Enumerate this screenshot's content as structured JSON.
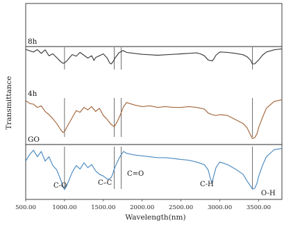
{
  "chart_data": {
    "type": "line",
    "xlabel": "Wavelength(nm)",
    "ylabel": "Transmittance",
    "xlim": [
      500,
      3800
    ],
    "xticks": [
      "500.00",
      "1000.00",
      "1500.00",
      "2000.00",
      "2500.00",
      "3000.00",
      "3500.00"
    ],
    "guide_lines": [
      1000,
      1640,
      1730,
      3420
    ],
    "annotations": [
      {
        "text": "C-O",
        "x": 1000,
        "series": "GO"
      },
      {
        "text": "C–C",
        "x": 1620,
        "series": "GO"
      },
      {
        "text": "C=O",
        "x": 1730,
        "series": "GO"
      },
      {
        "text": "C-H",
        "x": 2900,
        "series": "GO"
      },
      {
        "text": "O-H",
        "x": 3450,
        "series": "GO"
      }
    ],
    "series": [
      {
        "name": "8h",
        "color": "#3a3a3a",
        "x": [
          500,
          560,
          600,
          650,
          700,
          750,
          800,
          850,
          900,
          950,
          980,
          1000,
          1030,
          1060,
          1100,
          1150,
          1200,
          1250,
          1300,
          1350,
          1380,
          1400,
          1450,
          1500,
          1550,
          1580,
          1600,
          1620,
          1650,
          1700,
          1750,
          1800,
          1900,
          2000,
          2100,
          2200,
          2300,
          2400,
          2500,
          2600,
          2700,
          2750,
          2800,
          2850,
          2900,
          2920,
          2950,
          3000,
          3100,
          3200,
          3300,
          3350,
          3400,
          3420,
          3450,
          3500,
          3550,
          3600,
          3700,
          3800
        ],
        "y": [
          0.97,
          0.9,
          0.86,
          0.96,
          0.8,
          0.95,
          0.7,
          0.78,
          0.62,
          0.45,
          0.38,
          0.4,
          0.48,
          0.6,
          0.75,
          0.68,
          0.84,
          0.72,
          0.6,
          0.7,
          0.5,
          0.62,
          0.7,
          0.78,
          0.6,
          0.4,
          0.35,
          0.42,
          0.6,
          0.82,
          0.92,
          0.84,
          0.8,
          0.76,
          0.74,
          0.72,
          0.74,
          0.76,
          0.78,
          0.8,
          0.82,
          0.78,
          0.7,
          0.52,
          0.48,
          0.55,
          0.72,
          0.86,
          0.84,
          0.8,
          0.74,
          0.66,
          0.5,
          0.35,
          0.36,
          0.52,
          0.72,
          0.86,
          0.95,
          0.99
        ]
      },
      {
        "name": "4h",
        "color": "#a4653a",
        "x": [
          500,
          550,
          600,
          650,
          700,
          750,
          800,
          850,
          900,
          950,
          980,
          1000,
          1050,
          1100,
          1150,
          1200,
          1250,
          1300,
          1350,
          1400,
          1450,
          1500,
          1550,
          1600,
          1640,
          1680,
          1720,
          1760,
          1800,
          1900,
          2000,
          2100,
          2200,
          2300,
          2400,
          2500,
          2600,
          2700,
          2800,
          2850,
          2900,
          2950,
          3000,
          3100,
          3200,
          3300,
          3350,
          3400,
          3420,
          3450,
          3480,
          3500,
          3550,
          3600,
          3700,
          3800
        ],
        "y": [
          0.97,
          0.9,
          0.88,
          0.8,
          0.84,
          0.7,
          0.62,
          0.52,
          0.4,
          0.25,
          0.18,
          0.2,
          0.38,
          0.55,
          0.72,
          0.68,
          0.8,
          0.74,
          0.82,
          0.7,
          0.78,
          0.6,
          0.5,
          0.38,
          0.32,
          0.45,
          0.62,
          0.82,
          0.92,
          0.86,
          0.82,
          0.84,
          0.8,
          0.82,
          0.8,
          0.8,
          0.82,
          0.8,
          0.76,
          0.66,
          0.62,
          0.6,
          0.62,
          0.6,
          0.5,
          0.4,
          0.3,
          0.1,
          0.03,
          0.05,
          0.15,
          0.3,
          0.55,
          0.78,
          0.95,
          0.99
        ]
      },
      {
        "name": "GO",
        "color": "#4a89c0",
        "x": [
          500,
          550,
          600,
          650,
          700,
          750,
          800,
          850,
          900,
          950,
          980,
          1000,
          1030,
          1100,
          1150,
          1200,
          1250,
          1300,
          1350,
          1400,
          1450,
          1500,
          1560,
          1600,
          1620,
          1640,
          1680,
          1720,
          1760,
          1800,
          1900,
          2000,
          2100,
          2200,
          2300,
          2400,
          2500,
          2600,
          2700,
          2800,
          2850,
          2880,
          2900,
          2920,
          2950,
          3000,
          3100,
          3200,
          3300,
          3350,
          3400,
          3420,
          3450,
          3480,
          3500,
          3550,
          3600,
          3700,
          3800
        ],
        "y": [
          0.7,
          0.85,
          0.95,
          0.8,
          0.92,
          0.7,
          0.8,
          0.6,
          0.5,
          0.28,
          0.12,
          0.05,
          0.15,
          0.45,
          0.6,
          0.52,
          0.66,
          0.55,
          0.62,
          0.48,
          0.4,
          0.36,
          0.28,
          0.32,
          0.4,
          0.52,
          0.68,
          0.82,
          0.92,
          0.88,
          0.84,
          0.82,
          0.8,
          0.78,
          0.78,
          0.76,
          0.74,
          0.72,
          0.68,
          0.62,
          0.5,
          0.3,
          0.2,
          0.35,
          0.55,
          0.68,
          0.62,
          0.52,
          0.4,
          0.25,
          0.12,
          0.06,
          0.08,
          0.2,
          0.35,
          0.6,
          0.8,
          0.96,
          0.99
        ]
      }
    ]
  }
}
